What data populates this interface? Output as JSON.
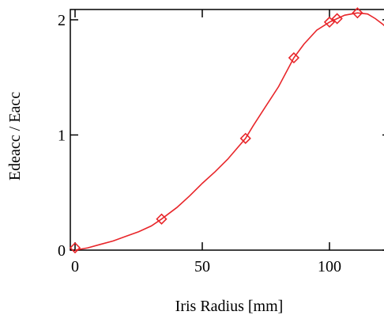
{
  "chart_data": {
    "type": "line",
    "title": "",
    "xlabel": "Iris Radius [mm]",
    "ylabel": "Edeacc / Eacc",
    "xlim": [
      0,
      125
    ],
    "ylim": [
      0,
      2.1
    ],
    "x_ticks": [
      0,
      50,
      100
    ],
    "x_tick_labels": [
      "0",
      "50",
      "100"
    ],
    "y_ticks": [
      0,
      1,
      2
    ],
    "y_tick_labels": [
      "0",
      "1",
      "2"
    ],
    "grid": false,
    "series": [
      {
        "color": "#e8262a",
        "marker": "diamond",
        "points": [
          {
            "x": 0,
            "y": 0.02
          },
          {
            "x": 34,
            "y": 0.27
          },
          {
            "x": 67,
            "y": 0.97
          },
          {
            "x": 86,
            "y": 1.67
          },
          {
            "x": 100,
            "y": 1.98
          },
          {
            "x": 103,
            "y": 2.01
          },
          {
            "x": 111,
            "y": 2.06
          }
        ],
        "curve": [
          [
            0,
            0.0
          ],
          [
            5,
            0.02
          ],
          [
            10,
            0.05
          ],
          [
            15,
            0.08
          ],
          [
            20,
            0.12
          ],
          [
            25,
            0.16
          ],
          [
            30,
            0.21
          ],
          [
            34,
            0.27
          ],
          [
            40,
            0.37
          ],
          [
            45,
            0.47
          ],
          [
            50,
            0.58
          ],
          [
            55,
            0.68
          ],
          [
            60,
            0.79
          ],
          [
            67,
            0.97
          ],
          [
            70,
            1.08
          ],
          [
            75,
            1.25
          ],
          [
            80,
            1.42
          ],
          [
            86,
            1.67
          ],
          [
            90,
            1.79
          ],
          [
            95,
            1.91
          ],
          [
            100,
            1.98
          ],
          [
            103,
            2.01
          ],
          [
            106,
            2.04
          ],
          [
            111,
            2.06
          ],
          [
            115,
            2.05
          ],
          [
            118,
            2.01
          ],
          [
            121,
            1.96
          ],
          [
            123,
            1.92
          ],
          [
            125,
            1.88
          ]
        ]
      }
    ]
  }
}
